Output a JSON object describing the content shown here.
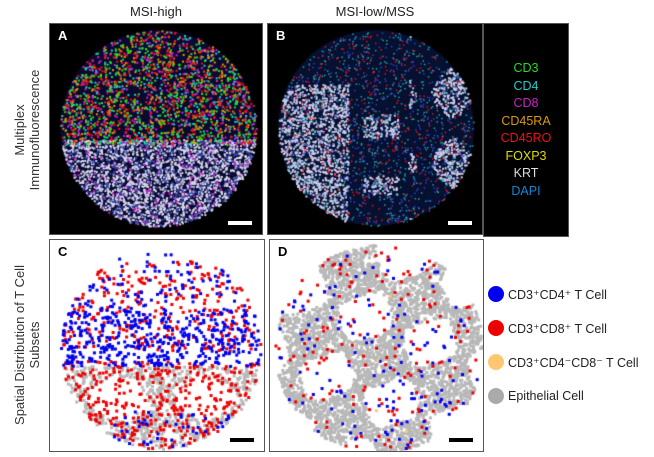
{
  "columns": [
    "MSI-high",
    "MSI-low/MSS"
  ],
  "rows": [
    "Multiplex Immunofluorescence",
    "Spatial Distribution of T Cell Subsets"
  ],
  "row_lines": [
    [
      "Multiplex",
      "Immunofluorescence"
    ],
    [
      "Spatial Distribution of T Cell",
      "Subsets"
    ]
  ],
  "panels": [
    "A",
    "B",
    "C",
    "D"
  ],
  "markers": [
    {
      "label": "CD3",
      "color": "#22dd22"
    },
    {
      "label": "CD4",
      "color": "#22cccc"
    },
    {
      "label": "CD8",
      "color": "#cc22cc"
    },
    {
      "label": "CD45RA",
      "color": "#dd9900"
    },
    {
      "label": "CD45RO",
      "color": "#ee1111"
    },
    {
      "label": "FOXP3",
      "color": "#dddd00"
    },
    {
      "label": "KRT",
      "color": "#dddddd"
    },
    {
      "label": "DAPI",
      "color": "#1188dd"
    }
  ],
  "legend": [
    {
      "label": "CD3⁺CD4⁺ T Cell",
      "color": "#0000ee"
    },
    {
      "label": "CD3⁺CD8⁺ T Cell",
      "color": "#ee0000"
    },
    {
      "label": "CD3⁺CD4⁻CD8⁻ T Cell",
      "color": "#ffc870"
    },
    {
      "label": "Epithelial Cell",
      "color": "#aaaaaa"
    }
  ]
}
